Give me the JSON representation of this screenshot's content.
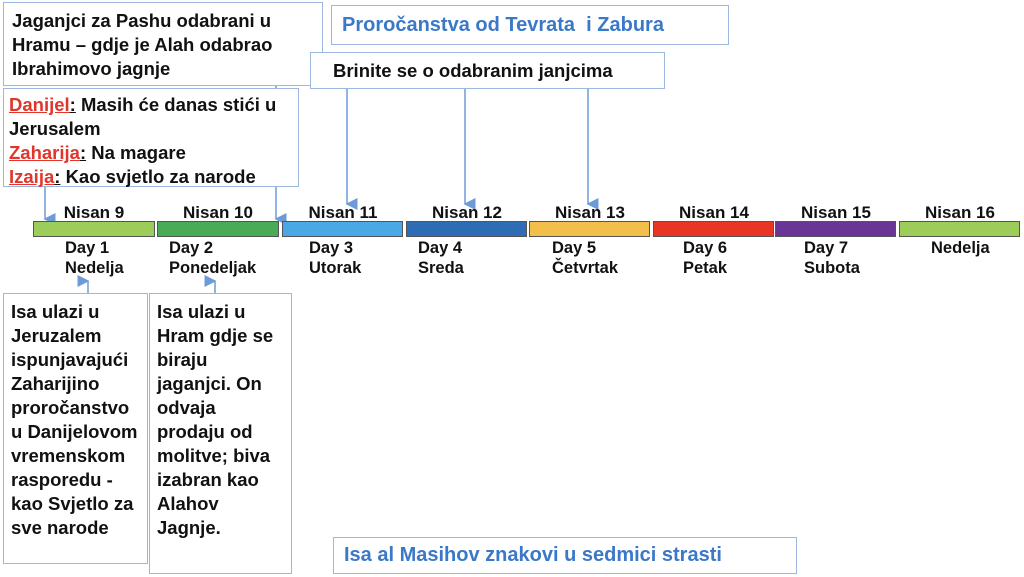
{
  "title_top": "Proročanstva od Tevrata  i Zabura",
  "title_bottom": "Isa al Masihov znakovi u sedmici strasti",
  "box_lambs": "Jaganjci za Pashu odabrani u Hramu – gdje je Alah odabrao Ibrahimovo jagnje",
  "box_watch": "Brinite se o odabranim janjcima",
  "prophecies": [
    {
      "name": "Danijel",
      "text": "Masih će danas stići u Jerusalem"
    },
    {
      "name": "Zaharija",
      "text": "Na magare"
    },
    {
      "name": "Izaija",
      "text": "Kao svjetlo za narode"
    }
  ],
  "days": [
    {
      "nisan": "Nisan 9",
      "day": "Day 1",
      "weekday": "Nedelja",
      "color": "#9ccc5a"
    },
    {
      "nisan": "Nisan 10",
      "day": "Day 2",
      "weekday": "Ponedeljak",
      "color": "#4aab56"
    },
    {
      "nisan": "Nisan 11",
      "day": "Day 3",
      "weekday": "Utorak",
      "color": "#4aa8e6"
    },
    {
      "nisan": "Nisan 12",
      "day": "Day 4",
      "weekday": "Sreda",
      "color": "#2e6db5"
    },
    {
      "nisan": "Nisan 13",
      "day": "Day 5",
      "weekday": "Četvrtak",
      "color": "#f2c04a"
    },
    {
      "nisan": "Nisan 14",
      "day": "Day 6",
      "weekday": "Petak",
      "color": "#e83526"
    },
    {
      "nisan": "Nisan 15",
      "day": "Day 7",
      "weekday": "Subota",
      "color": "#6a3597"
    },
    {
      "nisan": "Nisan 16",
      "day": "",
      "weekday": "Nedelja",
      "color": "#9ccc5a"
    }
  ],
  "note_day1": "Isa ulazi u Jeruzalem ispunjavajući Zaharijino proročanstvo u Danijelovom vremenskom rasporedu - kao Svjetlo za sve narode",
  "note_day2": "Isa ulazi u Hram gdje se biraju jaganjci. On odvaja prodaju od molitve; biva izabran kao Alahov Jagnje."
}
